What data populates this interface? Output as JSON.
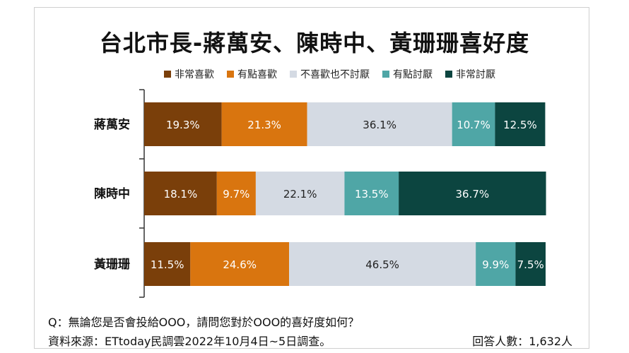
{
  "title": "台北市長-蔣萬安、陳時中、黃珊珊喜好度",
  "legend": [
    {
      "label": "非常喜歡",
      "color": "#7a3f0a"
    },
    {
      "label": "有點喜歡",
      "color": "#d9750f"
    },
    {
      "label": "不喜歡也不討厭",
      "color": "#d4dae3"
    },
    {
      "label": "有點討厭",
      "color": "#4fa6a6"
    },
    {
      "label": "非常討厭",
      "color": "#0c4540"
    }
  ],
  "chart_data": {
    "type": "bar",
    "orientation": "horizontal",
    "stacked": true,
    "categories": [
      "蔣萬安",
      "陳時中",
      "黃珊珊"
    ],
    "series": [
      {
        "name": "非常喜歡",
        "values": [
          19.3,
          18.1,
          11.5
        ]
      },
      {
        "name": "有點喜歡",
        "values": [
          21.3,
          9.7,
          24.6
        ]
      },
      {
        "name": "不喜歡也不討厭",
        "values": [
          36.1,
          22.1,
          46.5
        ]
      },
      {
        "name": "有點討厭",
        "values": [
          10.7,
          13.5,
          9.9
        ]
      },
      {
        "name": "非常討厭",
        "values": [
          12.5,
          36.7,
          7.5
        ]
      }
    ],
    "value_labels": [
      [
        "19.3%",
        "21.3%",
        "36.1%",
        "10.7%",
        "12.5%"
      ],
      [
        "18.1%",
        "9.7%",
        "22.1%",
        "13.5%",
        "36.7%"
      ],
      [
        "11.5%",
        "24.6%",
        "46.5%",
        "9.9%",
        "7.5%"
      ]
    ],
    "label_colors": [
      "#ffffff",
      "#ffffff",
      "#222222",
      "#ffffff",
      "#ffffff"
    ],
    "xlim": [
      0,
      100
    ],
    "legend_position": "top",
    "grid": false
  },
  "footer": {
    "question": "Q：無論您是否會投給OOO，請問您對於OOO的喜好度如何？",
    "source": "資料來源：ETtoday民調雲2022年10月4日~5日調查。",
    "respondents": "回答人數：1,632人"
  }
}
